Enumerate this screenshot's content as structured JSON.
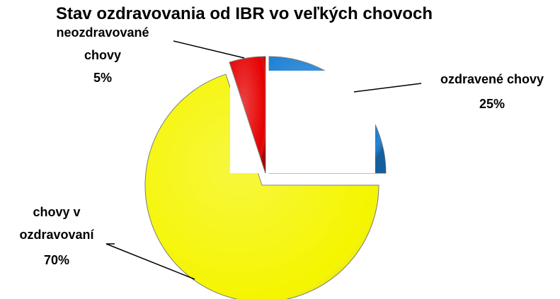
{
  "chart_data": {
    "type": "pie",
    "title": "Stav ozdravovania od IBR vo veľkých chovoch",
    "categories": [
      "ozdravené chovy",
      "chovy v ozdravovaní",
      "neozdravované chovy"
    ],
    "values": [
      25,
      70,
      5
    ],
    "value_labels": [
      "25%",
      "70%",
      "5%"
    ],
    "colors": [
      "#1a7fd4",
      "#f5f500",
      "#e60000"
    ]
  }
}
